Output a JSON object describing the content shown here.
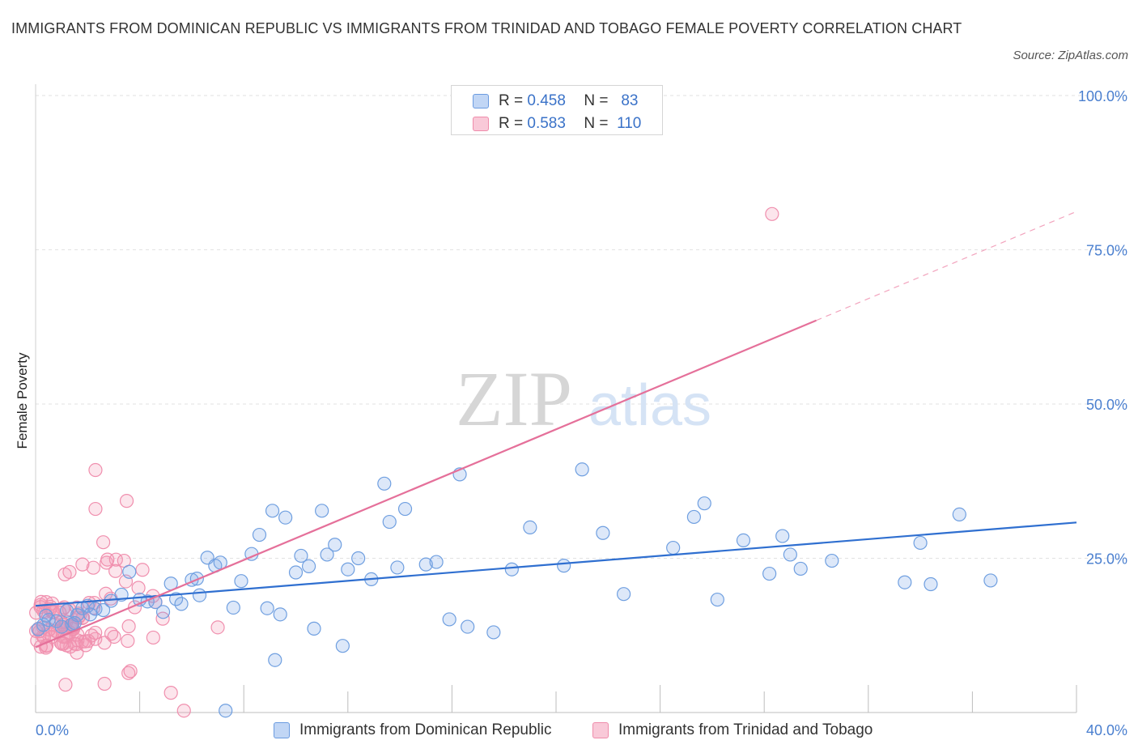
{
  "header": {
    "title": "IMMIGRANTS FROM DOMINICAN REPUBLIC VS IMMIGRANTS FROM TRINIDAD AND TOBAGO FEMALE POVERTY CORRELATION CHART",
    "source": "Source: ZipAtlas.com"
  },
  "legend": {
    "rows": [
      {
        "r_label": "R =",
        "r_value": "0.458",
        "n_label": "N =",
        "n_value": "83"
      },
      {
        "r_label": "R =",
        "r_value": "0.583",
        "n_label": "N =",
        "n_value": "110"
      }
    ]
  },
  "watermark": {
    "part1": "ZIP",
    "part2": "atlas"
  },
  "chart_data": {
    "type": "scatter",
    "ylabel": "Female Poverty",
    "xlim": [
      0,
      40
    ],
    "ylim": [
      0,
      100
    ],
    "x_ticks": [
      "0.0%",
      "40.0%"
    ],
    "y_ticks": [
      "25.0%",
      "50.0%",
      "75.0%",
      "100.0%"
    ],
    "y_tick_values": [
      25,
      50,
      75,
      100
    ],
    "grid": true,
    "legend_position": "top-center",
    "colors": {
      "dominican": "#5b8fd8",
      "trinidad": "#f07fa3",
      "dominican_line": "#2f6fd0",
      "trinidad_line": "#e5709a"
    },
    "series": [
      {
        "name": "Immigrants from Dominican Republic",
        "color": "#5b8fd8",
        "trend": {
          "x": [
            0,
            40
          ],
          "y": [
            17.3,
            30.8
          ],
          "dashed_from": null
        },
        "points": [
          [
            0.1,
            13.5
          ],
          [
            0.3,
            14.2
          ],
          [
            0.5,
            15.0
          ],
          [
            0.8,
            14.8
          ],
          [
            1.0,
            13.9
          ],
          [
            1.2,
            16.5
          ],
          [
            1.4,
            14.3
          ],
          [
            1.6,
            15.8
          ],
          [
            1.8,
            16.9
          ],
          [
            2.0,
            17.3
          ],
          [
            2.3,
            16.8
          ],
          [
            2.6,
            16.6
          ],
          [
            2.9,
            18.1
          ],
          [
            3.3,
            19.1
          ],
          [
            3.6,
            22.8
          ],
          [
            4.0,
            18.3
          ],
          [
            4.3,
            18.0
          ],
          [
            4.6,
            17.9
          ],
          [
            4.9,
            16.3
          ],
          [
            5.2,
            20.9
          ],
          [
            5.4,
            18.4
          ],
          [
            5.6,
            17.6
          ],
          [
            6.0,
            21.5
          ],
          [
            6.2,
            21.7
          ],
          [
            6.6,
            25.1
          ],
          [
            6.9,
            23.8
          ],
          [
            7.1,
            24.3
          ],
          [
            7.6,
            17.0
          ],
          [
            7.9,
            21.3
          ],
          [
            8.3,
            25.7
          ],
          [
            8.6,
            28.8
          ],
          [
            8.9,
            16.9
          ],
          [
            9.1,
            32.7
          ],
          [
            9.4,
            15.9
          ],
          [
            9.6,
            31.6
          ],
          [
            10.0,
            22.7
          ],
          [
            10.2,
            25.4
          ],
          [
            10.5,
            23.7
          ],
          [
            10.7,
            13.6
          ],
          [
            11.0,
            32.7
          ],
          [
            11.2,
            25.6
          ],
          [
            11.5,
            27.2
          ],
          [
            11.8,
            10.8
          ],
          [
            12.0,
            23.2
          ],
          [
            12.4,
            25.0
          ],
          [
            12.9,
            21.6
          ],
          [
            13.4,
            37.1
          ],
          [
            13.6,
            30.9
          ],
          [
            13.9,
            23.5
          ],
          [
            14.2,
            33.0
          ],
          [
            15.0,
            24.0
          ],
          [
            15.4,
            24.4
          ],
          [
            15.9,
            15.1
          ],
          [
            16.3,
            38.6
          ],
          [
            16.6,
            13.9
          ],
          [
            17.6,
            13.0
          ],
          [
            18.3,
            23.2
          ],
          [
            19.0,
            30.0
          ],
          [
            20.3,
            23.8
          ],
          [
            21.0,
            39.4
          ],
          [
            21.8,
            29.1
          ],
          [
            22.6,
            19.2
          ],
          [
            24.5,
            26.7
          ],
          [
            25.3,
            31.7
          ],
          [
            25.7,
            33.9
          ],
          [
            26.2,
            18.3
          ],
          [
            27.2,
            27.9
          ],
          [
            28.2,
            22.5
          ],
          [
            28.7,
            28.6
          ],
          [
            29.0,
            25.6
          ],
          [
            29.4,
            23.3
          ],
          [
            30.6,
            24.6
          ],
          [
            33.4,
            21.1
          ],
          [
            34.0,
            27.5
          ],
          [
            34.4,
            20.8
          ],
          [
            35.5,
            32.1
          ],
          [
            36.7,
            21.4
          ],
          [
            7.3,
            0.3
          ],
          [
            9.2,
            8.5
          ],
          [
            0.4,
            15.7
          ],
          [
            1.5,
            14.5
          ],
          [
            2.1,
            15.9
          ],
          [
            6.3,
            19.0
          ]
        ]
      },
      {
        "name": "Immigrants from Trinidad and Tobago",
        "color": "#f07fa3",
        "trend": {
          "x": [
            0,
            40
          ],
          "y": [
            10.6,
            81.2
          ],
          "dashed_from": 30
        }
      }
    ]
  },
  "bottom_legend": {
    "items": [
      "Immigrants from Dominican Republic",
      "Immigrants from Trinidad and Tobago"
    ]
  }
}
